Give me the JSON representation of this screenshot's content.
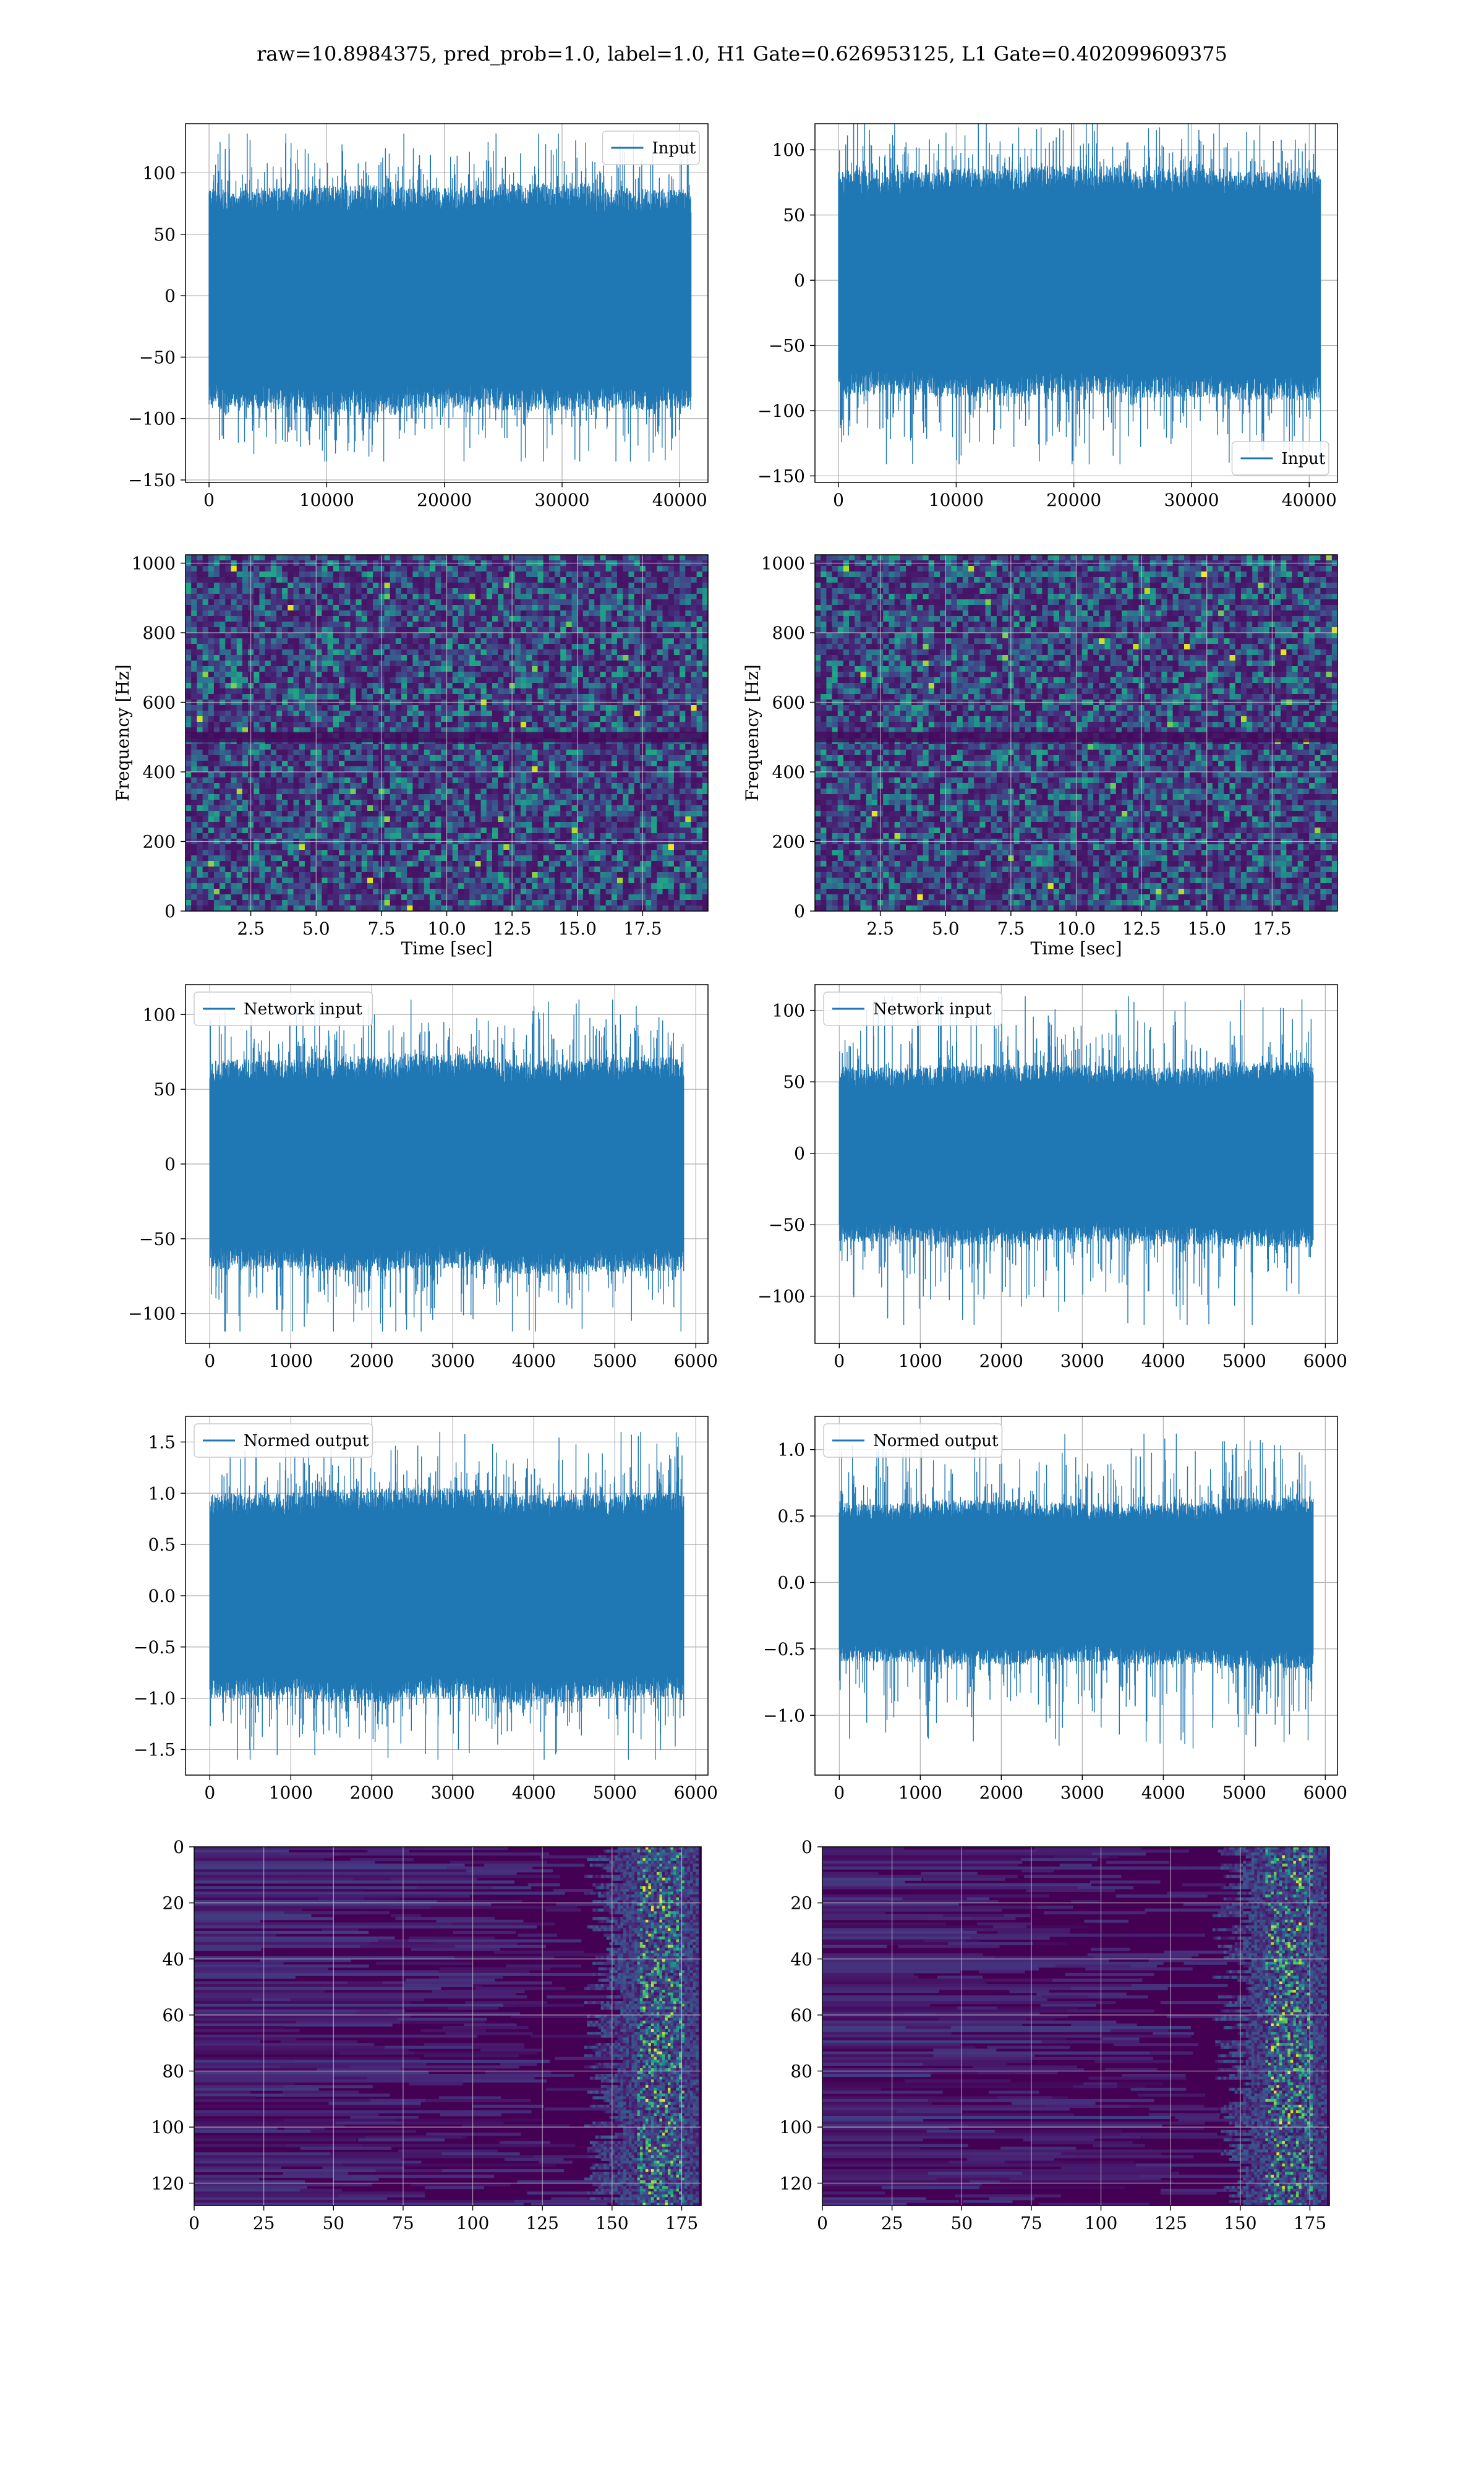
{
  "figure": {
    "title": "raw=10.8984375, pred_prob=1.0, label=1.0, H1 Gate=0.626953125, L1 Gate=0.402099609375"
  },
  "colors": {
    "line": "#1f77b4",
    "grid": "#b0b0b0",
    "viridis_low": "#440154",
    "viridis_high": "#fde725"
  },
  "chart_data": [
    {
      "id": "h1-input",
      "type": "line",
      "title": "",
      "xlabel": "",
      "ylabel": "",
      "xlim": [
        -2000,
        42400
      ],
      "ylim": [
        -152,
        140
      ],
      "xticks": [
        0,
        10000,
        20000,
        30000,
        40000
      ],
      "yticks": [
        -150,
        -100,
        -50,
        0,
        50,
        100
      ],
      "legend": {
        "loc": "upper right",
        "entries": [
          "Input"
        ]
      },
      "series": [
        {
          "name": "Input",
          "x_range": [
            0,
            40960
          ],
          "envelope": [
            [
              -92,
              88
            ],
            [
              -97,
              90
            ],
            [
              -92,
              88
            ],
            [
              -94,
              92
            ],
            [
              -93,
              87
            ]
          ],
          "max": 132,
          "min": -135
        }
      ],
      "grid": true
    },
    {
      "id": "l1-input",
      "type": "line",
      "title": "",
      "xlabel": "",
      "ylabel": "",
      "xlim": [
        -2000,
        42400
      ],
      "ylim": [
        -155,
        120
      ],
      "xticks": [
        0,
        10000,
        20000,
        30000,
        40000
      ],
      "yticks": [
        -150,
        -100,
        -50,
        0,
        50,
        100
      ],
      "legend": {
        "loc": "lower right",
        "entries": [
          "Input"
        ]
      },
      "series": [
        {
          "name": "Input",
          "x_range": [
            0,
            40960
          ],
          "envelope": [
            [
              -88,
              85
            ],
            [
              -90,
              86
            ],
            [
              -88,
              88
            ],
            [
              -90,
              86
            ],
            [
              -92,
              84
            ]
          ],
          "max": 128,
          "min": -141
        }
      ],
      "grid": true
    },
    {
      "id": "h1-spectrogram",
      "type": "heatmap",
      "title": "",
      "xlabel": "Time [sec]",
      "ylabel": "Frequency [Hz]",
      "xlim": [
        0,
        20
      ],
      "ylim": [
        0,
        1024
      ],
      "xticks": [
        "2.5",
        "5.0",
        "7.5",
        "10.0",
        "12.5",
        "15.0",
        "17.5"
      ],
      "yticks": [
        "0",
        "200",
        "400",
        "600",
        "800",
        "1000"
      ],
      "colormap": "viridis",
      "grid": true
    },
    {
      "id": "l1-spectrogram",
      "type": "heatmap",
      "title": "",
      "xlabel": "Time [sec]",
      "ylabel": "Frequency [Hz]",
      "xlim": [
        0,
        20
      ],
      "ylim": [
        0,
        1024
      ],
      "xticks": [
        "2.5",
        "5.0",
        "7.5",
        "10.0",
        "12.5",
        "15.0",
        "17.5"
      ],
      "yticks": [
        "0",
        "200",
        "400",
        "600",
        "800",
        "1000"
      ],
      "colormap": "viridis",
      "grid": true
    },
    {
      "id": "h1-network-input",
      "type": "line",
      "title": "",
      "xlabel": "",
      "ylabel": "",
      "xlim": [
        -300,
        6150
      ],
      "ylim": [
        -120,
        120
      ],
      "xticks": [
        0,
        1000,
        2000,
        3000,
        4000,
        5000,
        6000
      ],
      "yticks": [
        -100,
        -50,
        0,
        50,
        100
      ],
      "legend": {
        "loc": "upper left",
        "entries": [
          "Network input"
        ]
      },
      "series": [
        {
          "name": "Network input",
          "x_range": [
            0,
            5850
          ],
          "envelope": [
            [
              -70,
              70
            ],
            [
              -72,
              72
            ],
            [
              -70,
              74
            ],
            [
              -74,
              70
            ],
            [
              -72,
              72
            ]
          ],
          "max": 110,
          "min": -112
        }
      ],
      "grid": true
    },
    {
      "id": "l1-network-input",
      "type": "line",
      "title": "",
      "xlabel": "",
      "ylabel": "",
      "xlim": [
        -300,
        6150
      ],
      "ylim": [
        -133,
        118
      ],
      "xticks": [
        0,
        1000,
        2000,
        3000,
        4000,
        5000,
        6000
      ],
      "yticks": [
        -100,
        -50,
        0,
        50,
        100
      ],
      "legend": {
        "loc": "upper left",
        "entries": [
          "Network input"
        ]
      },
      "series": [
        {
          "name": "Network input",
          "x_range": [
            0,
            5850
          ],
          "envelope": [
            [
              -62,
              60
            ],
            [
              -64,
              62
            ],
            [
              -62,
              62
            ],
            [
              -64,
              60
            ],
            [
              -66,
              64
            ]
          ],
          "max": 110,
          "min": -120
        }
      ],
      "grid": true
    },
    {
      "id": "h1-normed-output",
      "type": "line",
      "title": "",
      "xlabel": "",
      "ylabel": "",
      "xlim": [
        -300,
        6150
      ],
      "ylim": [
        -1.75,
        1.75
      ],
      "xticks": [
        0,
        1000,
        2000,
        3000,
        4000,
        5000,
        6000
      ],
      "yticks": [
        -1.5,
        -1.0,
        -0.5,
        0.0,
        0.5,
        1.0,
        1.5
      ],
      "legend": {
        "loc": "upper left",
        "entries": [
          "Normed output"
        ]
      },
      "series": [
        {
          "name": "Normed output",
          "x_range": [
            0,
            5850
          ],
          "envelope": [
            [
              -1.0,
              1.0
            ],
            [
              -1.05,
              1.05
            ],
            [
              -1.0,
              1.05
            ],
            [
              -1.05,
              1.0
            ],
            [
              -1.0,
              1.0
            ]
          ],
          "max": 1.6,
          "min": -1.6
        }
      ],
      "grid": true
    },
    {
      "id": "l1-normed-output",
      "type": "line",
      "title": "",
      "xlabel": "",
      "ylabel": "",
      "xlim": [
        -300,
        6150
      ],
      "ylim": [
        -1.45,
        1.25
      ],
      "xticks": [
        0,
        1000,
        2000,
        3000,
        4000,
        5000,
        6000
      ],
      "yticks": [
        -1.0,
        -0.5,
        0.0,
        0.5,
        1.0
      ],
      "legend": {
        "loc": "upper left",
        "entries": [
          "Normed output"
        ]
      },
      "series": [
        {
          "name": "Normed output",
          "x_range": [
            0,
            5850
          ],
          "envelope": [
            [
              -0.6,
              0.6
            ],
            [
              -0.62,
              0.62
            ],
            [
              -0.6,
              0.6
            ],
            [
              -0.62,
              0.6
            ],
            [
              -0.65,
              0.64
            ]
          ],
          "max": 1.12,
          "min": -1.25
        }
      ],
      "grid": true
    },
    {
      "id": "h1-activations",
      "type": "heatmap",
      "title": "",
      "xlabel": "",
      "ylabel": "",
      "xlim": [
        0,
        182
      ],
      "ylim": [
        128,
        0
      ],
      "xticks": [
        0,
        25,
        50,
        75,
        100,
        125,
        150,
        175
      ],
      "yticks": [
        0,
        20,
        40,
        60,
        80,
        100,
        120
      ],
      "colormap": "viridis",
      "grid": true
    },
    {
      "id": "l1-activations",
      "type": "heatmap",
      "title": "",
      "xlabel": "",
      "ylabel": "",
      "xlim": [
        0,
        182
      ],
      "ylim": [
        128,
        0
      ],
      "xticks": [
        0,
        25,
        50,
        75,
        100,
        125,
        150,
        175
      ],
      "yticks": [
        0,
        20,
        40,
        60,
        80,
        100,
        120
      ],
      "colormap": "viridis",
      "grid": true
    }
  ]
}
